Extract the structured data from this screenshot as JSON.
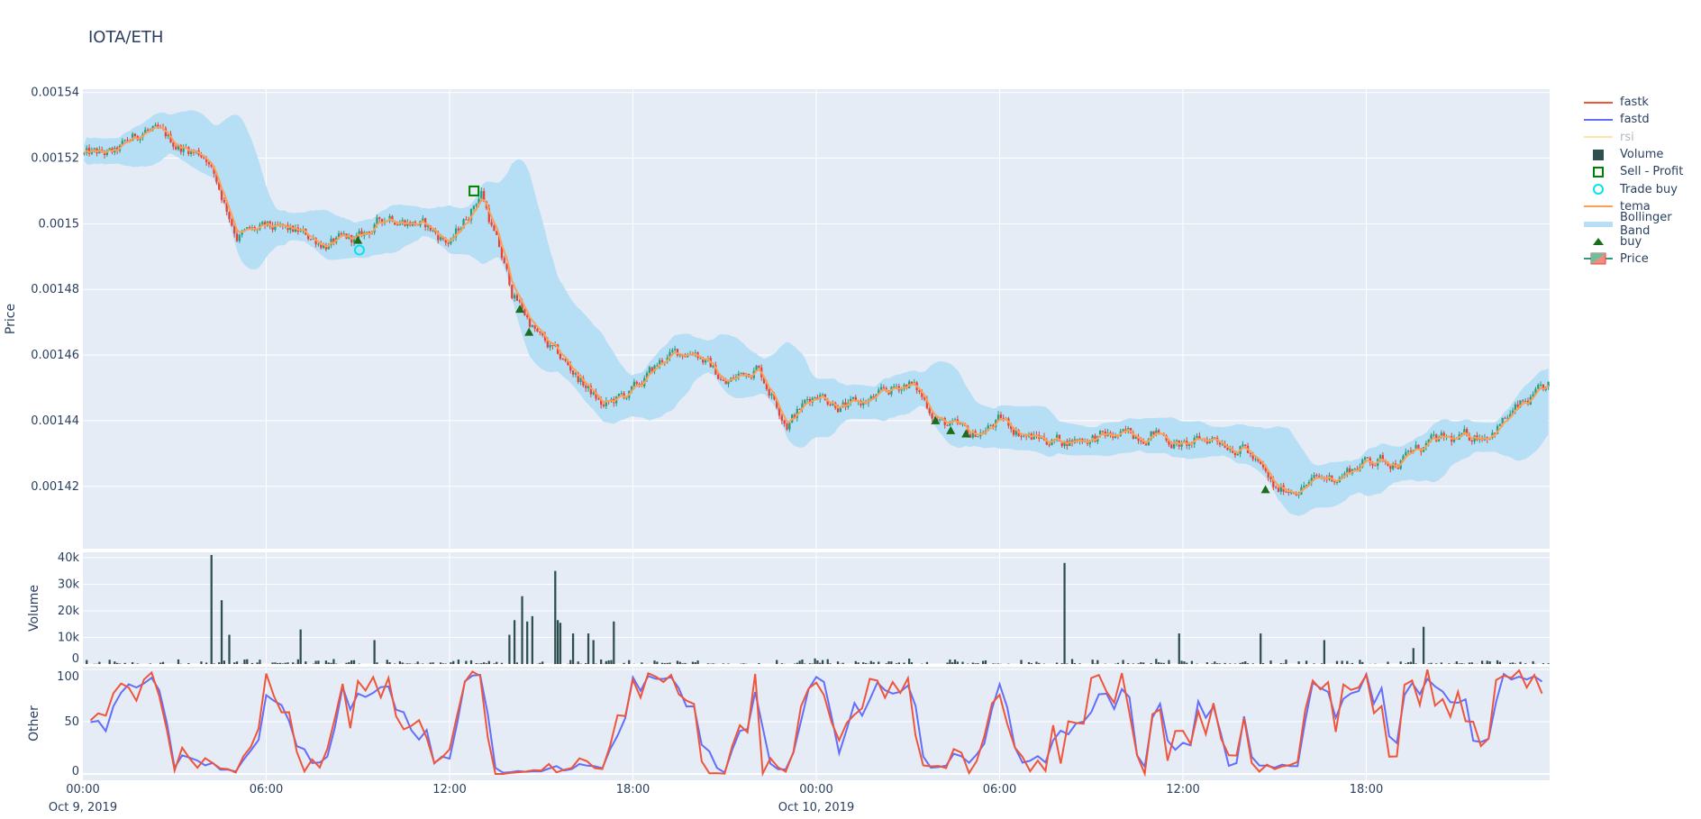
{
  "title": "IOTA/ETH",
  "colors": {
    "plot_bg": "#e5ecf6",
    "increasing": "#2a9d7c",
    "decreasing": "#e8413a",
    "volume": "#2f4f4f",
    "tema": "#ff9f55",
    "bollinger": "#b6def4",
    "fastk": "#ef553b",
    "fastd": "#636efa",
    "rsi": "#ffe4a8",
    "buy": "#1b6e1b",
    "sell_profit": "#008000",
    "trade_buy": "#00e5ee"
  },
  "legend": [
    {
      "label": "fastk",
      "symbol": "line",
      "color": "#ef553b"
    },
    {
      "label": "fastd",
      "symbol": "line",
      "color": "#636efa"
    },
    {
      "label": "rsi",
      "symbol": "line",
      "color": "#ffe4a8",
      "hidden": true
    },
    {
      "label": "Volume",
      "symbol": "square",
      "color": "#2f4f4f"
    },
    {
      "label": "Sell - Profit",
      "symbol": "square-open",
      "color": "#008000"
    },
    {
      "label": "Trade buy",
      "symbol": "circle-open",
      "color": "#00e5ee"
    },
    {
      "label": "tema",
      "symbol": "line",
      "color": "#ff9f55"
    },
    {
      "label": "Bollinger Band",
      "symbol": "band",
      "color": "#b6def4"
    },
    {
      "label": "buy",
      "symbol": "triangle-up",
      "color": "#1b6e1b"
    },
    {
      "label": "Price",
      "symbol": "candlestick",
      "color": "#2a9d7c"
    }
  ],
  "chart_data": {
    "type": "candlestick",
    "title": "IOTA/ETH",
    "interval_minutes": 5,
    "x_start": "2019-10-09 00:00",
    "x_hours": 48,
    "x_ticks": [
      {
        "hour": 0,
        "label": "00:00",
        "sublabel": "Oct 9, 2019"
      },
      {
        "hour": 6,
        "label": "06:00",
        "sublabel": ""
      },
      {
        "hour": 12,
        "label": "12:00",
        "sublabel": ""
      },
      {
        "hour": 18,
        "label": "18:00",
        "sublabel": ""
      },
      {
        "hour": 24,
        "label": "00:00",
        "sublabel": "Oct 10, 2019"
      },
      {
        "hour": 30,
        "label": "06:00",
        "sublabel": ""
      },
      {
        "hour": 36,
        "label": "12:00",
        "sublabel": ""
      },
      {
        "hour": 42,
        "label": "18:00",
        "sublabel": ""
      }
    ],
    "price": {
      "ylabel": "Price",
      "ylim": [
        0.001401,
        0.001541
      ],
      "y_ticks": [
        "0.00142",
        "0.00144",
        "0.00146",
        "0.00148",
        "0.0015",
        "0.00152",
        "0.00154"
      ],
      "hourly_close": [
        0.001521,
        0.001521,
        0.001529,
        0.001524,
        0.001521,
        0.001497,
        0.001498,
        0.001497,
        0.001494,
        0.001495,
        0.001503,
        0.0015,
        0.001494,
        0.00151,
        0.001479,
        0.001464,
        0.001455,
        0.001444,
        0.001449,
        0.001459,
        0.001462,
        0.001451,
        0.001457,
        0.00144,
        0.001449,
        0.001444,
        0.001447,
        0.001452,
        0.00144,
        0.001435,
        0.00144,
        0.001435,
        0.001434,
        0.001435,
        0.001435,
        0.001437,
        0.001432,
        0.001435,
        0.001432,
        0.001418,
        0.001421,
        0.001423,
        0.001428,
        0.001428,
        0.001433,
        0.001434,
        0.001437,
        0.001444,
        0.00145
      ]
    },
    "volume": {
      "ylabel": "Volume",
      "ylim": [
        0,
        42000
      ],
      "y_ticks": [
        {
          "v": 0,
          "label": "0"
        },
        {
          "v": 10000,
          "label": "10k"
        },
        {
          "v": 20000,
          "label": "20k"
        },
        {
          "v": 30000,
          "label": "30k"
        },
        {
          "v": 40000,
          "label": "40k"
        }
      ],
      "spikes": [
        {
          "hour": 4.15,
          "value": 41000
        },
        {
          "hour": 4.5,
          "value": 24000
        },
        {
          "hour": 4.75,
          "value": 11000
        },
        {
          "hour": 7.05,
          "value": 13000
        },
        {
          "hour": 9.5,
          "value": 9000
        },
        {
          "hour": 13.9,
          "value": 11000
        },
        {
          "hour": 14.1,
          "value": 16500
        },
        {
          "hour": 14.3,
          "value": 25500
        },
        {
          "hour": 14.5,
          "value": 16000
        },
        {
          "hour": 14.7,
          "value": 18000
        },
        {
          "hour": 15.4,
          "value": 35000
        },
        {
          "hour": 15.5,
          "value": 16500
        },
        {
          "hour": 15.6,
          "value": 15500
        },
        {
          "hour": 16.0,
          "value": 11500
        },
        {
          "hour": 16.5,
          "value": 11500
        },
        {
          "hour": 16.7,
          "value": 9000
        },
        {
          "hour": 17.3,
          "value": 16000
        },
        {
          "hour": 32.1,
          "value": 38000
        },
        {
          "hour": 35.8,
          "value": 11500
        },
        {
          "hour": 38.5,
          "value": 11500
        },
        {
          "hour": 40.6,
          "value": 9000
        },
        {
          "hour": 43.5,
          "value": 6000
        },
        {
          "hour": 43.8,
          "value": 14000
        }
      ]
    },
    "other": {
      "ylabel": "Other",
      "ylim": [
        -6,
        102.6
      ],
      "y_ticks": [
        "0",
        "50",
        "100"
      ],
      "series": [
        "fastk",
        "fastd"
      ]
    },
    "markers": {
      "buy": [
        {
          "hour": 9.0,
          "price": 0.001495
        },
        {
          "hour": 14.3,
          "price": 0.001474
        },
        {
          "hour": 14.6,
          "price": 0.001467
        },
        {
          "hour": 27.9,
          "price": 0.00144
        },
        {
          "hour": 28.4,
          "price": 0.001437
        },
        {
          "hour": 28.9,
          "price": 0.001436
        },
        {
          "hour": 38.7,
          "price": 0.001419
        }
      ],
      "trade_buy": [
        {
          "hour": 9.05,
          "price": 0.001492
        }
      ],
      "sell_profit": [
        {
          "hour": 12.8,
          "price": 0.00151
        }
      ]
    }
  }
}
